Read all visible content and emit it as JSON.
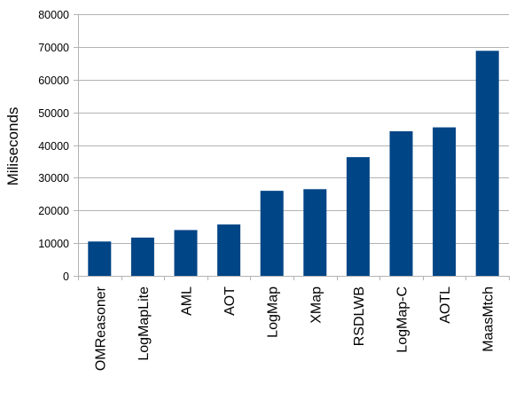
{
  "chart_data": {
    "type": "bar",
    "title": "",
    "xlabel": "",
    "ylabel": "Miliseconds",
    "categories": [
      "OMReasoner",
      "LogMapLite",
      "AML",
      "AOT",
      "LogMap",
      "XMap",
      "RSDLWB",
      "LogMap-C",
      "AOTL",
      "MaasMtch"
    ],
    "values": [
      10500,
      11700,
      14000,
      15700,
      26000,
      26500,
      36300,
      44200,
      45400,
      68800
    ],
    "ylim": [
      0,
      80000
    ],
    "yticks": [
      0,
      10000,
      20000,
      30000,
      40000,
      50000,
      60000,
      70000,
      80000
    ],
    "grid": true,
    "legend": "none",
    "colors": {
      "bar": "#004586",
      "grid": "#b3b3b3",
      "axis": "#b3b3b3",
      "text": "#000000"
    }
  }
}
